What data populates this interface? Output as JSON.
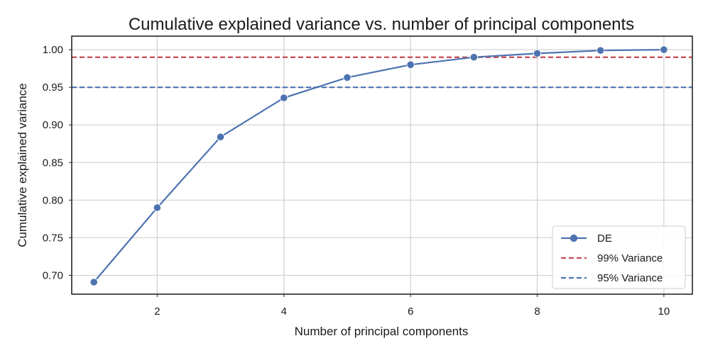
{
  "chart_data": {
    "type": "line",
    "title": "Cumulative explained variance vs. number of principal components",
    "xlabel": "Number of principal components",
    "ylabel": "Cumulative explained variance",
    "xlim": [
      0.65,
      10.45
    ],
    "ylim": [
      0.675,
      1.018
    ],
    "xticks": [
      2,
      4,
      6,
      8,
      10
    ],
    "yticks": [
      0.7,
      0.75,
      0.8,
      0.85,
      0.9,
      0.95,
      1.0
    ],
    "xtick_labels": [
      "2",
      "4",
      "6",
      "8",
      "10"
    ],
    "ytick_labels": [
      "0.70",
      "0.75",
      "0.80",
      "0.85",
      "0.90",
      "0.95",
      "1.00"
    ],
    "grid": true,
    "legend_position": "lower-right",
    "series": [
      {
        "name": "DE",
        "color": "#4c72b0",
        "marker": "circle",
        "x": [
          1,
          2,
          3,
          4,
          5,
          6,
          7,
          8,
          9,
          10
        ],
        "y": [
          0.691,
          0.79,
          0.884,
          0.936,
          0.963,
          0.98,
          0.99,
          0.995,
          0.999,
          1.0
        ]
      }
    ],
    "hlines": [
      {
        "name": "99% Variance",
        "y": 0.99,
        "color": "#c44e52",
        "style": "dashed"
      },
      {
        "name": "95% Variance",
        "y": 0.95,
        "color": "#4c72b0",
        "style": "dashed"
      }
    ]
  }
}
